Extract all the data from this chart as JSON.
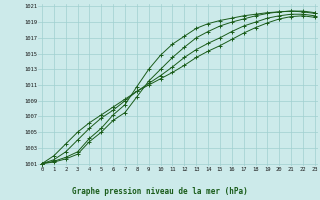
{
  "bg_color": "#cceaea",
  "line_color": "#1a5c1a",
  "grid_color": "#a0d0d0",
  "xlabel": "Graphe pression niveau de la mer (hPa)",
  "xlabel_color": "#1a5c1a",
  "xmin": 0,
  "xmax": 23,
  "ymin": 1001,
  "ymax": 1021,
  "yticks": [
    1001,
    1003,
    1005,
    1007,
    1009,
    1011,
    1013,
    1015,
    1017,
    1019,
    1021
  ],
  "xticks": [
    0,
    1,
    2,
    3,
    4,
    5,
    6,
    7,
    8,
    9,
    10,
    11,
    12,
    13,
    14,
    15,
    16,
    17,
    18,
    19,
    20,
    21,
    22,
    23
  ],
  "series": [
    [
      1001.0,
      1001.3,
      1001.8,
      1002.5,
      1004.2,
      1005.5,
      1007.2,
      1008.5,
      1010.8,
      1013.0,
      1014.8,
      1016.2,
      1017.2,
      1018.2,
      1018.8,
      1019.2,
      1019.5,
      1019.8,
      1020.0,
      1020.2,
      1020.3,
      1020.4,
      1020.4,
      1020.2
    ],
    [
      1001.0,
      1001.2,
      1001.6,
      1002.2,
      1003.8,
      1005.0,
      1006.5,
      1007.5,
      1009.5,
      1011.5,
      1013.0,
      1014.5,
      1015.8,
      1017.0,
      1017.8,
      1018.5,
      1019.0,
      1019.4,
      1019.8,
      1020.1,
      1020.3,
      1020.4,
      1020.3,
      1020.1
    ],
    [
      1001.0,
      1001.5,
      1002.5,
      1004.0,
      1005.5,
      1006.8,
      1007.8,
      1009.0,
      1010.2,
      1011.2,
      1012.2,
      1013.3,
      1014.5,
      1015.5,
      1016.3,
      1017.0,
      1017.8,
      1018.5,
      1019.0,
      1019.5,
      1019.8,
      1020.0,
      1020.0,
      1019.8
    ],
    [
      1001.0,
      1002.0,
      1003.5,
      1005.0,
      1006.2,
      1007.2,
      1008.2,
      1009.2,
      1010.2,
      1011.0,
      1011.8,
      1012.6,
      1013.5,
      1014.5,
      1015.3,
      1016.0,
      1016.8,
      1017.6,
      1018.3,
      1018.9,
      1019.4,
      1019.7,
      1019.8,
      1019.6
    ]
  ]
}
